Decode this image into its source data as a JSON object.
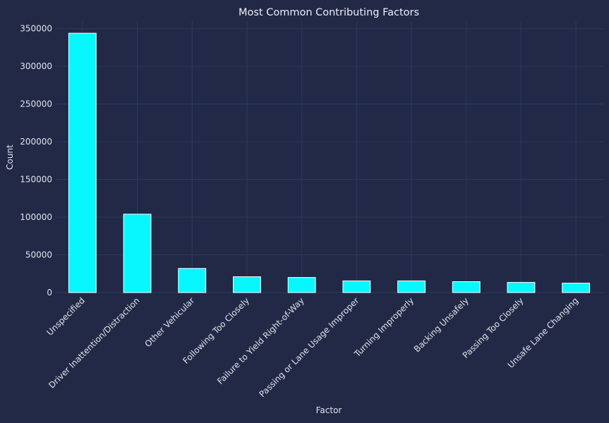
{
  "chart_data": {
    "type": "bar",
    "title": "Most Common Contributing Factors",
    "xlabel": "Factor",
    "ylabel": "Count",
    "categories": [
      "Unspecified",
      "Driver Inattention/Distraction",
      "Other Vehicular",
      "Following Too Closely",
      "Failure to Yield Right-of-Way",
      "Passing or Lane Usage Improper",
      "Turning Improperly",
      "Backing Unsafely",
      "Passing Too Closely",
      "Unsafe Lane Changing"
    ],
    "values": [
      344000,
      104000,
      32000,
      21000,
      20000,
      15500,
      15500,
      14500,
      13500,
      12500
    ],
    "ylim": [
      0,
      360000
    ],
    "yticks": [
      0,
      50000,
      100000,
      150000,
      200000,
      250000,
      300000,
      350000
    ],
    "ytick_labels": [
      "0",
      "50000",
      "100000",
      "150000",
      "200000",
      "250000",
      "300000",
      "350000"
    ],
    "grid": true,
    "legend": "none",
    "colors": {
      "background": "#212946",
      "bar": "#08F7FE",
      "bar_edge": "#ffffff",
      "grid": "#2b3a5c",
      "text": "#e0e3ea"
    }
  }
}
